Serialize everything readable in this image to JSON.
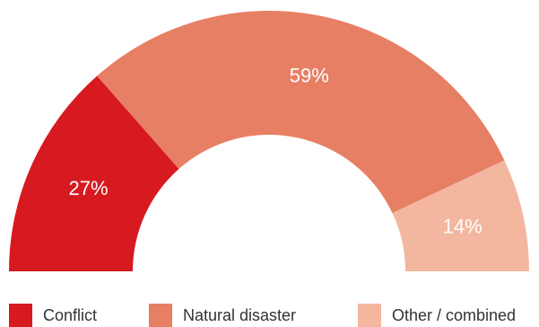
{
  "chart_data": {
    "type": "pie",
    "variant": "semicircle-donut",
    "title": "",
    "slices": [
      {
        "name": "Conflict",
        "value": 27,
        "label": "27%",
        "color": "#d71920"
      },
      {
        "name": "Natural disaster",
        "value": 59,
        "label": "59%",
        "color": "#e77f64"
      },
      {
        "name": "Other / combined",
        "value": 14,
        "label": "14%",
        "color": "#f3b7a0"
      }
    ],
    "legend_placement": "bottom"
  }
}
